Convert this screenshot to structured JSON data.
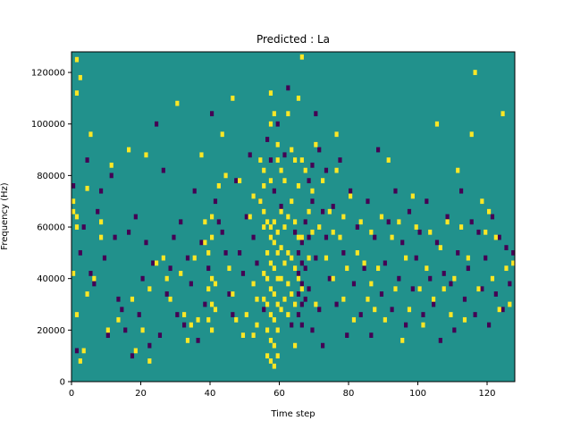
{
  "chart_data": {
    "type": "heatmap",
    "title": "Predicted : La",
    "xlabel": "Time step",
    "ylabel": "Frequency (Hz)",
    "xlim": [
      0,
      128
    ],
    "ylim": [
      0,
      128000
    ],
    "xticks": [
      0,
      20,
      40,
      60,
      80,
      100,
      120
    ],
    "yticks": [
      0,
      20000,
      40000,
      60000,
      80000,
      100000,
      120000
    ],
    "xtick_labels": [
      "0",
      "20",
      "40",
      "60",
      "80",
      "100",
      "120"
    ],
    "ytick_labels": [
      "0",
      "20000",
      "40000",
      "60000",
      "80000",
      "100000",
      "120000"
    ],
    "n_time_bins": 128,
    "n_freq_bins": 128,
    "colors": {
      "background": "#21918c",
      "high": "#fde725",
      "low": "#440154"
    },
    "high_cells": [
      [
        0,
        70
      ],
      [
        0,
        66
      ],
      [
        0,
        42
      ],
      [
        1,
        125
      ],
      [
        1,
        112
      ],
      [
        1,
        64
      ],
      [
        1,
        60
      ],
      [
        1,
        26
      ],
      [
        2,
        118
      ],
      [
        2,
        8
      ],
      [
        3,
        12
      ],
      [
        4,
        75
      ],
      [
        4,
        34
      ],
      [
        5,
        96
      ],
      [
        6,
        40
      ],
      [
        8,
        56
      ],
      [
        8,
        62
      ],
      [
        10,
        20
      ],
      [
        11,
        84
      ],
      [
        13,
        24
      ],
      [
        16,
        90
      ],
      [
        17,
        32
      ],
      [
        18,
        12
      ],
      [
        20,
        20
      ],
      [
        21,
        88
      ],
      [
        22,
        36
      ],
      [
        22,
        8
      ],
      [
        24,
        46
      ],
      [
        26,
        48
      ],
      [
        27,
        40
      ],
      [
        28,
        32
      ],
      [
        30,
        108
      ],
      [
        31,
        42
      ],
      [
        32,
        26
      ],
      [
        33,
        16
      ],
      [
        34,
        22
      ],
      [
        35,
        48
      ],
      [
        36,
        24
      ],
      [
        37,
        88
      ],
      [
        38,
        62
      ],
      [
        38,
        54
      ],
      [
        39,
        50
      ],
      [
        39,
        36
      ],
      [
        39,
        24
      ],
      [
        40,
        64
      ],
      [
        40,
        56
      ],
      [
        40,
        40
      ],
      [
        40,
        30
      ],
      [
        40,
        20
      ],
      [
        41,
        38
      ],
      [
        41,
        28
      ],
      [
        42,
        76
      ],
      [
        43,
        96
      ],
      [
        44,
        80
      ],
      [
        45,
        44
      ],
      [
        46,
        110
      ],
      [
        46,
        34
      ],
      [
        47,
        24
      ],
      [
        48,
        78
      ],
      [
        49,
        18
      ],
      [
        50,
        26
      ],
      [
        51,
        64
      ],
      [
        52,
        72
      ],
      [
        52,
        38
      ],
      [
        52,
        18
      ],
      [
        53,
        32
      ],
      [
        53,
        22
      ],
      [
        54,
        86
      ],
      [
        54,
        70
      ],
      [
        55,
        82
      ],
      [
        55,
        76
      ],
      [
        55,
        66
      ],
      [
        55,
        60
      ],
      [
        55,
        42
      ],
      [
        55,
        32
      ],
      [
        56,
        62
      ],
      [
        56,
        50
      ],
      [
        56,
        40
      ],
      [
        56,
        30
      ],
      [
        56,
        20
      ],
      [
        56,
        10
      ],
      [
        57,
        112
      ],
      [
        57,
        100
      ],
      [
        57,
        78
      ],
      [
        57,
        60
      ],
      [
        57,
        56
      ],
      [
        57,
        46
      ],
      [
        57,
        36
      ],
      [
        57,
        26
      ],
      [
        57,
        16
      ],
      [
        57,
        8
      ],
      [
        58,
        104
      ],
      [
        58,
        62
      ],
      [
        58,
        54
      ],
      [
        58,
        44
      ],
      [
        58,
        34
      ],
      [
        58,
        24
      ],
      [
        58,
        14
      ],
      [
        58,
        6
      ],
      [
        59,
        92
      ],
      [
        59,
        86
      ],
      [
        59,
        58
      ],
      [
        59,
        50
      ],
      [
        59,
        40
      ],
      [
        59,
        30
      ],
      [
        59,
        20
      ],
      [
        59,
        10
      ],
      [
        60,
        82
      ],
      [
        60,
        66
      ],
      [
        60,
        52
      ],
      [
        60,
        40
      ],
      [
        60,
        28
      ],
      [
        61,
        78
      ],
      [
        61,
        60
      ],
      [
        61,
        46
      ],
      [
        61,
        32
      ],
      [
        62,
        104
      ],
      [
        62,
        64
      ],
      [
        62,
        50
      ],
      [
        62,
        38
      ],
      [
        62,
        26
      ],
      [
        63,
        90
      ],
      [
        63,
        70
      ],
      [
        63,
        48
      ],
      [
        63,
        34
      ],
      [
        64,
        86
      ],
      [
        64,
        62
      ],
      [
        64,
        44
      ],
      [
        64,
        30
      ],
      [
        64,
        14
      ],
      [
        65,
        110
      ],
      [
        65,
        76
      ],
      [
        65,
        56
      ],
      [
        65,
        40
      ],
      [
        66,
        126
      ],
      [
        66,
        86
      ],
      [
        66,
        56
      ],
      [
        66,
        36
      ],
      [
        67,
        82
      ],
      [
        68,
        66
      ],
      [
        68,
        48
      ],
      [
        69,
        74
      ],
      [
        69,
        58
      ],
      [
        70,
        92
      ],
      [
        70,
        30
      ],
      [
        71,
        60
      ],
      [
        72,
        78
      ],
      [
        73,
        48
      ],
      [
        74,
        66
      ],
      [
        75,
        58
      ],
      [
        75,
        40
      ],
      [
        76,
        96
      ],
      [
        76,
        82
      ],
      [
        77,
        56
      ],
      [
        78,
        64
      ],
      [
        78,
        32
      ],
      [
        79,
        44
      ],
      [
        80,
        72
      ],
      [
        81,
        24
      ],
      [
        82,
        50
      ],
      [
        83,
        62
      ],
      [
        84,
        46
      ],
      [
        85,
        32
      ],
      [
        86,
        58
      ],
      [
        86,
        38
      ],
      [
        87,
        28
      ],
      [
        88,
        44
      ],
      [
        89,
        64
      ],
      [
        90,
        24
      ],
      [
        91,
        86
      ],
      [
        92,
        56
      ],
      [
        93,
        36
      ],
      [
        94,
        62
      ],
      [
        95,
        16
      ],
      [
        96,
        48
      ],
      [
        97,
        28
      ],
      [
        98,
        72
      ],
      [
        99,
        60
      ],
      [
        100,
        36
      ],
      [
        101,
        22
      ],
      [
        102,
        44
      ],
      [
        103,
        58
      ],
      [
        104,
        32
      ],
      [
        105,
        100
      ],
      [
        106,
        52
      ],
      [
        107,
        36
      ],
      [
        108,
        62
      ],
      [
        109,
        26
      ],
      [
        110,
        40
      ],
      [
        111,
        82
      ],
      [
        112,
        60
      ],
      [
        113,
        24
      ],
      [
        114,
        48
      ],
      [
        115,
        96
      ],
      [
        116,
        120
      ],
      [
        117,
        36
      ],
      [
        118,
        70
      ],
      [
        119,
        58
      ],
      [
        120,
        66
      ],
      [
        121,
        40
      ],
      [
        122,
        56
      ],
      [
        123,
        28
      ],
      [
        124,
        104
      ],
      [
        125,
        44
      ],
      [
        126,
        30
      ],
      [
        127,
        46
      ]
    ],
    "low_cells": [
      [
        0,
        76
      ],
      [
        1,
        12
      ],
      [
        2,
        50
      ],
      [
        3,
        60
      ],
      [
        4,
        86
      ],
      [
        5,
        42
      ],
      [
        6,
        38
      ],
      [
        7,
        66
      ],
      [
        8,
        74
      ],
      [
        9,
        48
      ],
      [
        10,
        18
      ],
      [
        11,
        80
      ],
      [
        12,
        56
      ],
      [
        13,
        32
      ],
      [
        14,
        28
      ],
      [
        15,
        20
      ],
      [
        16,
        58
      ],
      [
        17,
        10
      ],
      [
        18,
        64
      ],
      [
        19,
        26
      ],
      [
        20,
        40
      ],
      [
        21,
        54
      ],
      [
        22,
        14
      ],
      [
        23,
        46
      ],
      [
        24,
        100
      ],
      [
        25,
        18
      ],
      [
        26,
        82
      ],
      [
        27,
        34
      ],
      [
        28,
        44
      ],
      [
        29,
        56
      ],
      [
        30,
        26
      ],
      [
        31,
        62
      ],
      [
        32,
        22
      ],
      [
        33,
        48
      ],
      [
        34,
        38
      ],
      [
        35,
        74
      ],
      [
        36,
        16
      ],
      [
        37,
        54
      ],
      [
        38,
        30
      ],
      [
        39,
        44
      ],
      [
        40,
        104
      ],
      [
        41,
        70
      ],
      [
        42,
        62
      ],
      [
        43,
        58
      ],
      [
        44,
        50
      ],
      [
        45,
        34
      ],
      [
        46,
        26
      ],
      [
        47,
        78
      ],
      [
        48,
        50
      ],
      [
        49,
        42
      ],
      [
        50,
        64
      ],
      [
        51,
        88
      ],
      [
        52,
        56
      ],
      [
        53,
        46
      ],
      [
        54,
        70
      ],
      [
        55,
        28
      ],
      [
        56,
        94
      ],
      [
        57,
        86
      ],
      [
        58,
        74
      ],
      [
        59,
        100
      ],
      [
        60,
        68
      ],
      [
        61,
        88
      ],
      [
        62,
        114
      ],
      [
        63,
        22
      ],
      [
        64,
        58
      ],
      [
        65,
        50
      ],
      [
        65,
        42
      ],
      [
        65,
        34
      ],
      [
        65,
        26
      ],
      [
        66,
        54
      ],
      [
        66,
        46
      ],
      [
        66,
        38
      ],
      [
        66,
        30
      ],
      [
        66,
        22
      ],
      [
        67,
        62
      ],
      [
        67,
        44
      ],
      [
        67,
        32
      ],
      [
        68,
        78
      ],
      [
        68,
        56
      ],
      [
        68,
        36
      ],
      [
        69,
        84
      ],
      [
        69,
        70
      ],
      [
        69,
        20
      ],
      [
        70,
        104
      ],
      [
        70,
        48
      ],
      [
        71,
        90
      ],
      [
        71,
        28
      ],
      [
        72,
        66
      ],
      [
        72,
        14
      ],
      [
        73,
        82
      ],
      [
        73,
        56
      ],
      [
        74,
        40
      ],
      [
        75,
        68
      ],
      [
        76,
        30
      ],
      [
        77,
        86
      ],
      [
        78,
        50
      ],
      [
        79,
        18
      ],
      [
        80,
        74
      ],
      [
        81,
        38
      ],
      [
        82,
        60
      ],
      [
        83,
        26
      ],
      [
        84,
        44
      ],
      [
        85,
        70
      ],
      [
        86,
        18
      ],
      [
        87,
        56
      ],
      [
        88,
        90
      ],
      [
        89,
        34
      ],
      [
        90,
        46
      ],
      [
        91,
        62
      ],
      [
        92,
        28
      ],
      [
        93,
        74
      ],
      [
        94,
        40
      ],
      [
        95,
        54
      ],
      [
        96,
        22
      ],
      [
        97,
        66
      ],
      [
        98,
        36
      ],
      [
        99,
        48
      ],
      [
        100,
        58
      ],
      [
        101,
        26
      ],
      [
        102,
        70
      ],
      [
        103,
        40
      ],
      [
        104,
        30
      ],
      [
        105,
        54
      ],
      [
        106,
        16
      ],
      [
        107,
        42
      ],
      [
        108,
        64
      ],
      [
        109,
        38
      ],
      [
        110,
        20
      ],
      [
        111,
        50
      ],
      [
        112,
        74
      ],
      [
        113,
        32
      ],
      [
        114,
        44
      ],
      [
        115,
        62
      ],
      [
        116,
        26
      ],
      [
        117,
        58
      ],
      [
        118,
        36
      ],
      [
        119,
        48
      ],
      [
        120,
        22
      ],
      [
        121,
        64
      ],
      [
        122,
        34
      ],
      [
        123,
        56
      ],
      [
        124,
        28
      ],
      [
        125,
        52
      ],
      [
        126,
        38
      ],
      [
        127,
        50
      ]
    ]
  }
}
